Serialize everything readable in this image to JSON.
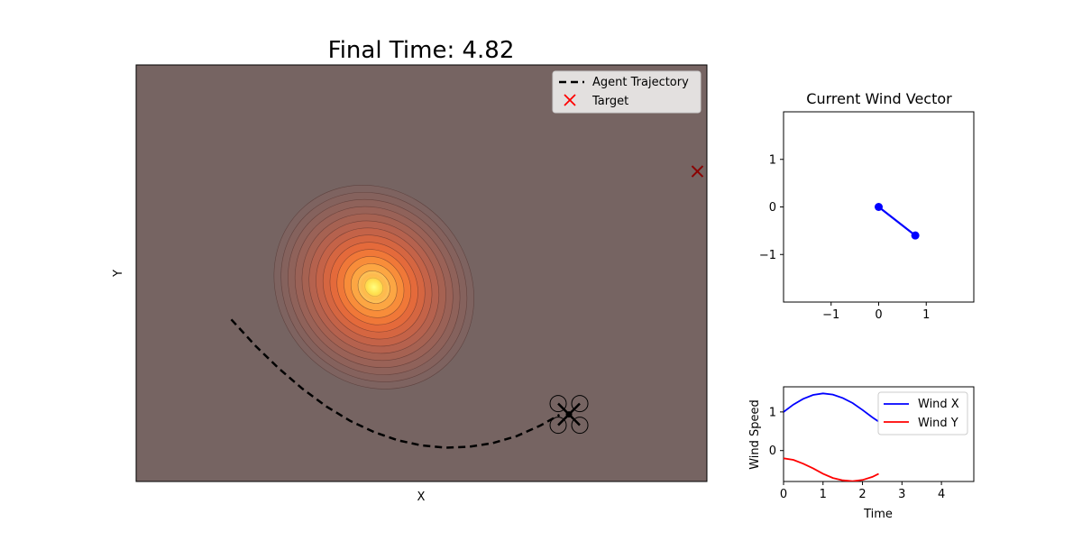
{
  "chart_data": [
    {
      "type": "scatter",
      "panel": "main",
      "title": "Final Time: 4.82",
      "xlabel": "X",
      "ylabel": "Y",
      "ticks_visible": false,
      "xlim": [
        -2,
        10
      ],
      "ylim": [
        -3,
        6
      ],
      "background_color": "#766462",
      "heatmap": {
        "colormap": "hot",
        "style": "filled contours, semi-transparent",
        "center": [
          3,
          1.2
        ],
        "sigma": [
          2,
          2.3
        ],
        "orientation_deg": 40
      },
      "series": [
        {
          "name": "Agent Trajectory",
          "style": "dashed",
          "color": "#000000",
          "x": [
            0,
            0.5,
            1.0,
            1.5,
            2.0,
            2.5,
            3.0,
            3.5,
            4.0,
            4.5,
            5.0,
            5.5,
            6.0,
            6.5,
            6.9
          ],
          "y": [
            0.5,
            -0.06,
            -0.56,
            -1.0,
            -1.38,
            -1.69,
            -1.93,
            -2.11,
            -2.22,
            -2.27,
            -2.25,
            -2.17,
            -2.02,
            -1.79,
            -1.56
          ]
        },
        {
          "name": "Target",
          "marker": "x",
          "color": "#ff0000",
          "x": [
            9.8
          ],
          "y": [
            3.7
          ]
        }
      ],
      "drone": {
        "x": 7.1,
        "y": -1.55
      },
      "legend": {
        "placement": "upper right"
      }
    },
    {
      "type": "line",
      "panel": "wind-vector",
      "title": "Current Wind Vector",
      "xlim": [
        -2,
        2
      ],
      "ylim": [
        -2,
        2
      ],
      "xticks": [
        -1,
        0,
        1
      ],
      "yticks": [
        -1,
        0,
        1
      ],
      "color": "#0000ff",
      "x": [
        0,
        0.77
      ],
      "y": [
        0,
        -0.6
      ]
    },
    {
      "type": "line",
      "panel": "wind-history",
      "xlabel": "Time",
      "ylabel": "Wind Speed",
      "xlim": [
        0,
        4.82
      ],
      "ylim": [
        -0.8,
        1.65
      ],
      "xticks": [
        0,
        1,
        2,
        3,
        4
      ],
      "yticks": [
        0,
        1
      ],
      "series": [
        {
          "name": "Wind X",
          "color": "#0000ff",
          "x": [
            0,
            0.25,
            0.5,
            0.75,
            1.0,
            1.25,
            1.5,
            1.75,
            2.0,
            2.25,
            2.41
          ],
          "y": [
            1.0,
            1.19,
            1.34,
            1.44,
            1.48,
            1.45,
            1.36,
            1.23,
            1.05,
            0.86,
            0.75
          ]
        },
        {
          "name": "Wind Y",
          "color": "#ff0000",
          "x": [
            0,
            0.25,
            0.5,
            0.75,
            1.0,
            1.25,
            1.5,
            1.75,
            2.0,
            2.25,
            2.41
          ],
          "y": [
            -0.2,
            -0.24,
            -0.34,
            -0.46,
            -0.6,
            -0.71,
            -0.77,
            -0.79,
            -0.76,
            -0.68,
            -0.6
          ]
        }
      ],
      "legend": {
        "placement": "upper right"
      }
    }
  ]
}
